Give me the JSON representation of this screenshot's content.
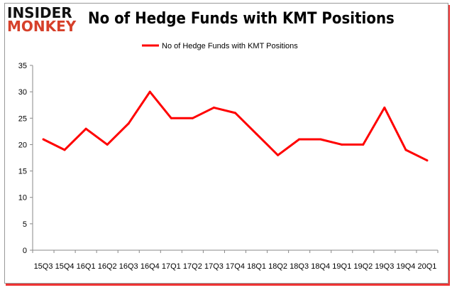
{
  "logo": {
    "line1": "INSIDER",
    "line2": "MONKEY"
  },
  "chart_data": {
    "type": "line",
    "title": "No of Hedge Funds with KMT Positions",
    "categories": [
      "15Q3",
      "15Q4",
      "16Q1",
      "16Q2",
      "16Q3",
      "16Q4",
      "17Q1",
      "17Q2",
      "17Q3",
      "17Q4",
      "18Q1",
      "18Q2",
      "18Q3",
      "18Q4",
      "19Q1",
      "19Q2",
      "19Q3",
      "19Q4",
      "20Q1"
    ],
    "series": [
      {
        "name": "No of Hedge Funds with KMT Positions",
        "color": "#ff0000",
        "values": [
          21,
          19,
          23,
          20,
          24,
          30,
          25,
          25,
          27,
          26,
          22,
          18,
          21,
          21,
          20,
          20,
          27,
          19,
          17
        ]
      }
    ],
    "ylim": [
      0,
      35
    ],
    "yticks": [
      0,
      5,
      10,
      15,
      20,
      25,
      30,
      35
    ],
    "grid": false,
    "legend": "top-center"
  }
}
